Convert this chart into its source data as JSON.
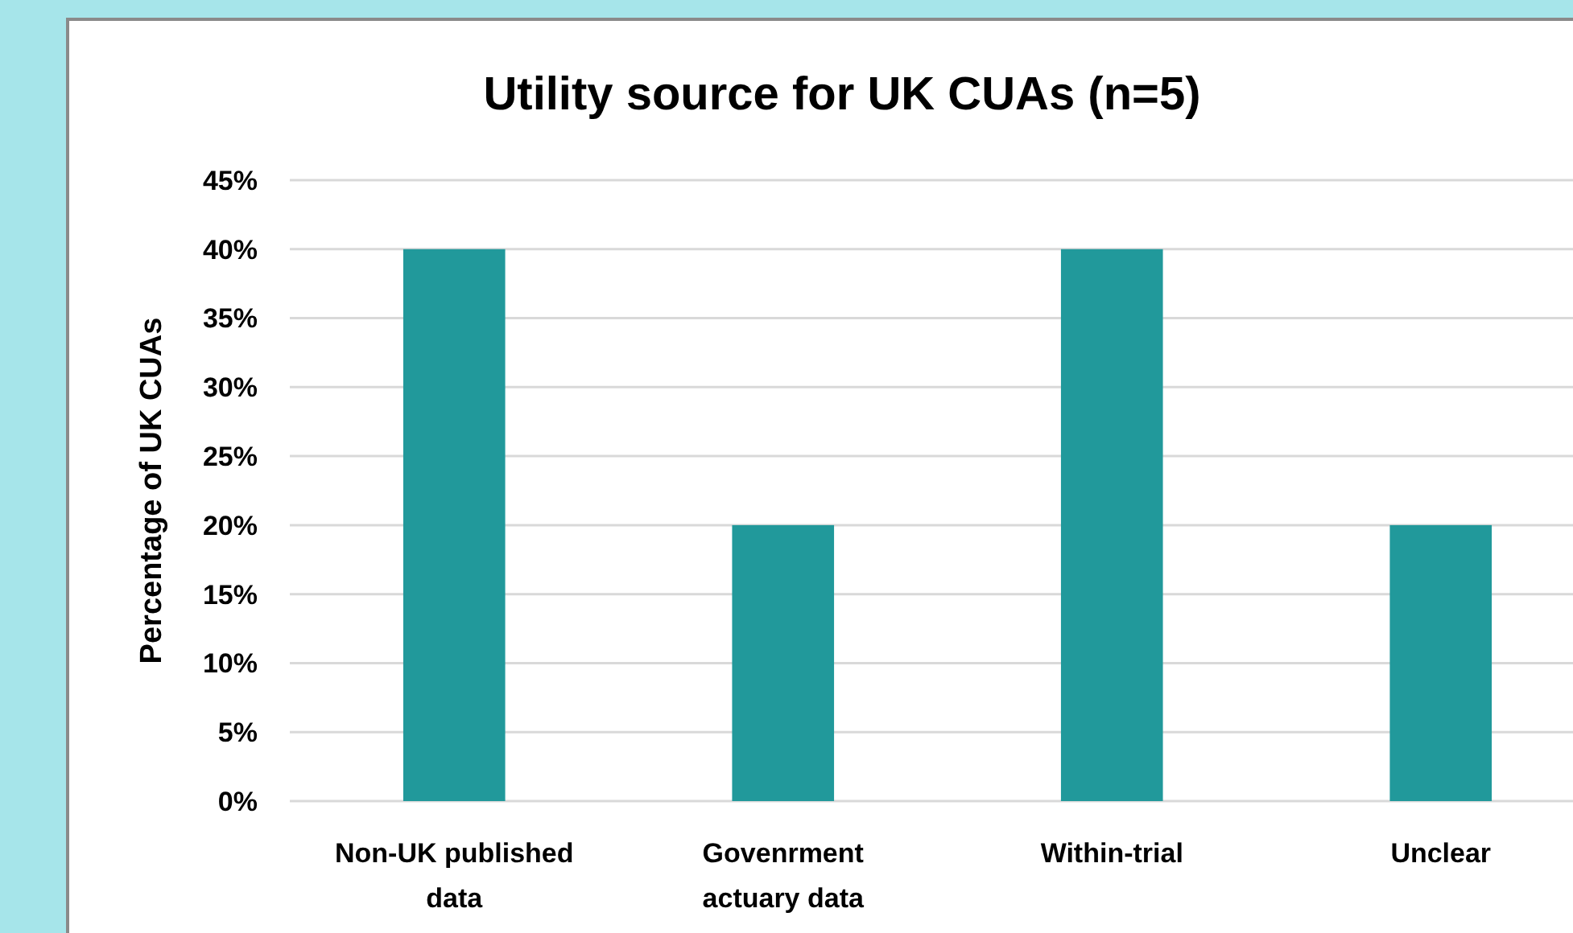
{
  "chart_data": {
    "type": "bar",
    "title": "Utility source for UK CUAs (n=5)",
    "ylabel": "Percentage of UK CUAs",
    "categories": [
      "Non-UK published data",
      "Govenrment actuary data",
      "Within-trial",
      "Unclear"
    ],
    "values": [
      40,
      20,
      40,
      20
    ],
    "color": "#21999b",
    "ylim": [
      0,
      45
    ],
    "yticks": [
      {
        "value": 0,
        "label": "0%"
      },
      {
        "value": 5,
        "label": "5%"
      },
      {
        "value": 10,
        "label": "10%"
      },
      {
        "value": 15,
        "label": "15%"
      },
      {
        "value": 20,
        "label": "20%"
      },
      {
        "value": 25,
        "label": "25%"
      },
      {
        "value": 30,
        "label": "30%"
      },
      {
        "value": 35,
        "label": "35%"
      },
      {
        "value": 40,
        "label": "40%"
      },
      {
        "value": 45,
        "label": "45%"
      }
    ],
    "grid": "y"
  }
}
